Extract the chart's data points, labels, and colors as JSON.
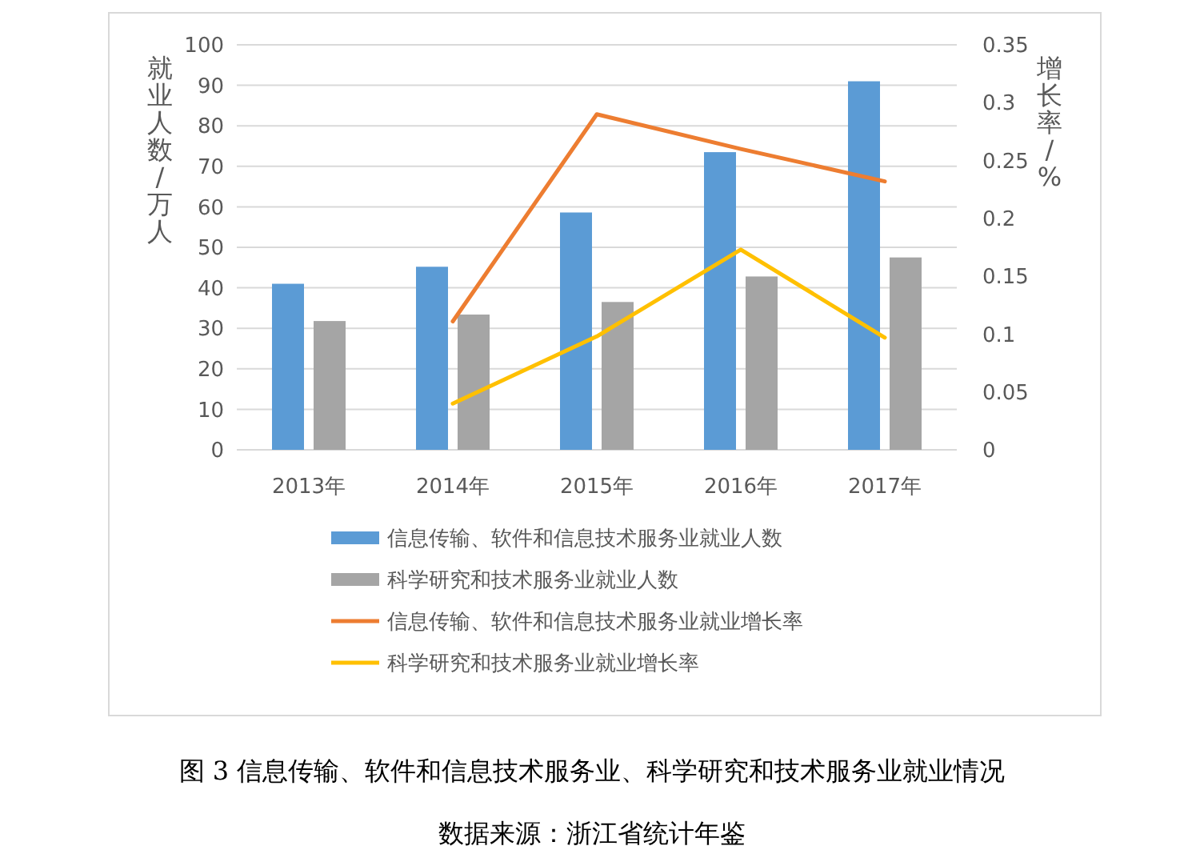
{
  "chart_data": {
    "type": "bar",
    "categories": [
      "2013年",
      "2014年",
      "2015年",
      "2016年",
      "2017年"
    ],
    "series": [
      {
        "name": "信息传输、软件和信息技术服务业就业人数",
        "color": "#5b9bd5",
        "values": [
          41,
          45.2,
          58.6,
          73.5,
          91
        ]
      },
      {
        "name": "科学研究和技术服务业就业人数",
        "color": "#a5a5a5",
        "values": [
          31.8,
          33.4,
          36.5,
          42.8,
          47.5
        ]
      },
      {
        "name": "信息传输、软件和信息技术服务业就业增长率",
        "type": "line",
        "axis": "y2",
        "color": "#ed7d31",
        "values": [
          null,
          0.111,
          0.29,
          0.26,
          0.232
        ]
      },
      {
        "name": "科学研究和技术服务业就业增长率",
        "type": "line",
        "axis": "y2",
        "color": "#ffc000",
        "values": [
          null,
          0.04,
          0.098,
          0.173,
          0.097
        ]
      }
    ],
    "ylabel": "就业人数/万人",
    "y2label": "增长率/%",
    "ylim": [
      0,
      100
    ],
    "yticks": [
      0,
      10,
      20,
      30,
      40,
      50,
      60,
      70,
      80,
      90,
      100
    ],
    "y2lim": [
      0,
      0.35
    ],
    "y2ticks": [
      0,
      0.05,
      0.1,
      0.15,
      0.2,
      0.25,
      0.3,
      0.35
    ],
    "grid": "y",
    "legend": "bottom",
    "marker": "none",
    "line_style": "solid",
    "annotations": [
      "图 3  信息传输、软件和信息技术服务业、科学研究和技术服务业就业情况",
      "数据来源：浙江省统计年鉴"
    ]
  }
}
